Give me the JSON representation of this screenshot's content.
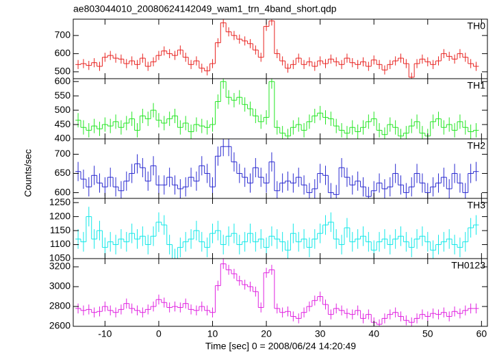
{
  "chart_data": [
    {
      "type": "step",
      "title": "ae803044010_20080624142049_wam1_trn_4band_short.qdp",
      "label": "TH0",
      "color": "#e8201e",
      "error": 25,
      "x": [
        -15,
        -14,
        -13,
        -12,
        -11,
        -10,
        -9,
        -8,
        -7,
        -6,
        -5,
        -4,
        -3,
        -2,
        -1,
        0,
        1,
        2,
        3,
        4,
        5,
        6,
        7,
        8,
        9,
        10,
        11,
        12,
        13,
        14,
        15,
        16,
        17,
        18,
        19,
        20,
        21,
        22,
        23,
        24,
        25,
        26,
        27,
        28,
        29,
        30,
        31,
        32,
        33,
        34,
        35,
        36,
        37,
        38,
        39,
        40,
        41,
        42,
        43,
        44,
        45,
        46,
        47,
        48,
        49,
        50,
        51,
        52,
        53,
        54,
        55,
        56,
        57,
        58,
        59
      ],
      "values": [
        540,
        545,
        535,
        550,
        530,
        580,
        590,
        575,
        570,
        545,
        560,
        540,
        575,
        530,
        555,
        590,
        615,
        600,
        590,
        620,
        580,
        540,
        560,
        520,
        505,
        545,
        660,
        770,
        720,
        700,
        680,
        670,
        655,
        620,
        580,
        750,
        780,
        600,
        560,
        520,
        540,
        575,
        540,
        555,
        530,
        560,
        545,
        570,
        555,
        540,
        575,
        550,
        540,
        555,
        530,
        565,
        540,
        510,
        540,
        560,
        575,
        545,
        470,
        545,
        570,
        555,
        540,
        560,
        600,
        585,
        570,
        600,
        580,
        545,
        530
      ],
      "xlim": [
        -15.9,
        61.1
      ],
      "xticks": [
        -10,
        0,
        10,
        20,
        30,
        40,
        50,
        60
      ],
      "ylim": [
        462,
        790
      ],
      "yticks": [
        500,
        600,
        700
      ]
    },
    {
      "type": "step",
      "label": "TH1",
      "color": "#22e622",
      "error": 25,
      "x": [
        -15,
        -14,
        -13,
        -12,
        -11,
        -10,
        -9,
        -8,
        -7,
        -6,
        -5,
        -4,
        -3,
        -2,
        -1,
        0,
        1,
        2,
        3,
        4,
        5,
        6,
        7,
        8,
        9,
        10,
        11,
        12,
        13,
        14,
        15,
        16,
        17,
        18,
        19,
        20,
        21,
        22,
        23,
        24,
        25,
        26,
        27,
        28,
        29,
        30,
        31,
        32,
        33,
        34,
        35,
        36,
        37,
        38,
        39,
        40,
        41,
        42,
        43,
        44,
        45,
        46,
        47,
        48,
        49,
        50,
        51,
        52,
        53,
        54,
        55,
        56,
        57,
        58,
        59
      ],
      "values": [
        465,
        440,
        430,
        445,
        435,
        450,
        445,
        460,
        440,
        455,
        470,
        430,
        480,
        470,
        500,
        465,
        455,
        470,
        480,
        440,
        455,
        425,
        450,
        445,
        440,
        450,
        530,
        600,
        545,
        535,
        545,
        520,
        505,
        480,
        460,
        475,
        600,
        440,
        420,
        410,
        440,
        450,
        430,
        460,
        480,
        490,
        475,
        470,
        445,
        430,
        420,
        440,
        425,
        440,
        460,
        470,
        430,
        415,
        450,
        440,
        410,
        420,
        445,
        460,
        420,
        410,
        460,
        470,
        440,
        450,
        430,
        460,
        440,
        425,
        430
      ],
      "xlim": [
        -15.9,
        61.1
      ],
      "xticks": [
        -10,
        0,
        10,
        20,
        30,
        40,
        50,
        60
      ],
      "ylim": [
        400,
        610
      ],
      "yticks": [
        400,
        450,
        500,
        550,
        600
      ]
    },
    {
      "type": "step",
      "label": "TH2",
      "color": "#2828d0",
      "error": 25,
      "ylabel": "Counts/sec",
      "x": [
        -15,
        -14,
        -13,
        -12,
        -11,
        -10,
        -9,
        -8,
        -7,
        -6,
        -5,
        -4,
        -3,
        -2,
        -1,
        0,
        1,
        2,
        3,
        4,
        5,
        6,
        7,
        8,
        9,
        10,
        11,
        12,
        13,
        14,
        15,
        16,
        17,
        18,
        19,
        20,
        21,
        22,
        23,
        24,
        25,
        26,
        27,
        28,
        29,
        30,
        31,
        32,
        33,
        34,
        35,
        36,
        37,
        38,
        39,
        40,
        41,
        42,
        43,
        44,
        45,
        46,
        47,
        48,
        49,
        50,
        51,
        52,
        53,
        54,
        55,
        56,
        57,
        58,
        59
      ],
      "values": [
        655,
        635,
        615,
        645,
        625,
        615,
        640,
        615,
        605,
        630,
        650,
        675,
        665,
        630,
        670,
        620,
        620,
        640,
        620,
        610,
        615,
        640,
        630,
        670,
        650,
        615,
        695,
        720,
        720,
        680,
        650,
        640,
        625,
        665,
        640,
        625,
        680,
        605,
        625,
        630,
        625,
        640,
        620,
        600,
        610,
        650,
        645,
        600,
        595,
        665,
        640,
        620,
        630,
        615,
        590,
        605,
        625,
        610,
        615,
        650,
        620,
        600,
        615,
        650,
        625,
        600,
        615,
        625,
        640,
        610,
        650,
        625,
        600,
        650,
        655
      ],
      "xlim": [
        -15.9,
        61.1
      ],
      "xticks": [
        -10,
        0,
        10,
        20,
        30,
        40,
        50,
        60
      ],
      "ylim": [
        585,
        740
      ],
      "yticks": [
        600,
        650,
        700
      ]
    },
    {
      "type": "step",
      "label": "TH3",
      "color": "#10e8e8",
      "error": 35,
      "x": [
        -15,
        -14,
        -13,
        -12,
        -11,
        -10,
        -9,
        -8,
        -7,
        -6,
        -5,
        -4,
        -3,
        -2,
        -1,
        0,
        1,
        2,
        3,
        4,
        5,
        6,
        7,
        8,
        9,
        10,
        11,
        12,
        13,
        14,
        15,
        16,
        17,
        18,
        19,
        20,
        21,
        22,
        23,
        24,
        25,
        26,
        27,
        28,
        29,
        30,
        31,
        32,
        33,
        34,
        35,
        36,
        37,
        38,
        39,
        40,
        41,
        42,
        43,
        44,
        45,
        46,
        47,
        48,
        49,
        50,
        51,
        52,
        53,
        54,
        55,
        56,
        57,
        58,
        59
      ],
      "values": [
        1120,
        1110,
        1200,
        1120,
        1150,
        1090,
        1110,
        1100,
        1120,
        1110,
        1140,
        1120,
        1130,
        1100,
        1130,
        1180,
        1170,
        1100,
        1050,
        1090,
        1110,
        1120,
        1150,
        1110,
        1090,
        1140,
        1150,
        1100,
        1130,
        1140,
        1100,
        1110,
        1140,
        1110,
        1120,
        1090,
        1130,
        1120,
        1110,
        1080,
        1140,
        1110,
        1120,
        1090,
        1120,
        1140,
        1170,
        1180,
        1120,
        1100,
        1160,
        1110,
        1120,
        1130,
        1110,
        1080,
        1110,
        1120,
        1100,
        1120,
        1130,
        1110,
        1090,
        1120,
        1130,
        1110,
        1080,
        1100,
        1110,
        1120,
        1100,
        1090,
        1110,
        1160,
        1170
      ],
      "xlim": [
        -15.9,
        61.1
      ],
      "xticks": [
        -10,
        0,
        10,
        20,
        30,
        40,
        50,
        60
      ],
      "ylim": [
        1050,
        1265
      ],
      "yticks": [
        1050,
        1100,
        1150,
        1200,
        1250
      ]
    },
    {
      "type": "step",
      "label": "TH0123",
      "color": "#e020e0",
      "error": 50,
      "xlabel": "Time [sec] 0 = 2008/06/24 14:20:49",
      "x": [
        -15,
        -14,
        -13,
        -12,
        -11,
        -10,
        -9,
        -8,
        -7,
        -6,
        -5,
        -4,
        -3,
        -2,
        -1,
        0,
        1,
        2,
        3,
        4,
        5,
        6,
        7,
        8,
        9,
        10,
        11,
        12,
        13,
        14,
        15,
        16,
        17,
        18,
        19,
        20,
        21,
        22,
        23,
        24,
        25,
        26,
        27,
        28,
        29,
        30,
        31,
        32,
        33,
        34,
        35,
        36,
        37,
        38,
        39,
        40,
        41,
        42,
        43,
        44,
        45,
        46,
        47,
        48,
        49,
        50,
        51,
        52,
        53,
        54,
        55,
        56,
        57,
        58,
        59
      ],
      "values": [
        2780,
        2760,
        2770,
        2740,
        2750,
        2800,
        2760,
        2740,
        2770,
        2830,
        2780,
        2760,
        2740,
        2770,
        2800,
        2870,
        2840,
        2790,
        2800,
        2790,
        2830,
        2770,
        2760,
        2800,
        2760,
        2740,
        3010,
        3230,
        3170,
        3130,
        3060,
        3020,
        3000,
        2950,
        2790,
        3140,
        3170,
        2780,
        2740,
        2750,
        2700,
        2680,
        2740,
        2800,
        2860,
        2900,
        2820,
        2720,
        2780,
        2760,
        2730,
        2720,
        2760,
        2680,
        2720,
        2640,
        2620,
        2680,
        2720,
        2740,
        2700,
        2660,
        2640,
        2680,
        2720,
        2700,
        2730,
        2720,
        2740,
        2700,
        2750,
        2730,
        2760,
        2780,
        2780
      ],
      "xlim": [
        -15.9,
        61.1
      ],
      "xticks": [
        -10,
        0,
        10,
        20,
        30,
        40,
        50,
        60
      ],
      "ylim": [
        2600,
        3283
      ],
      "yticks": [
        2600,
        2800,
        3000,
        3200
      ],
      "show_xtick_labels": true
    }
  ]
}
